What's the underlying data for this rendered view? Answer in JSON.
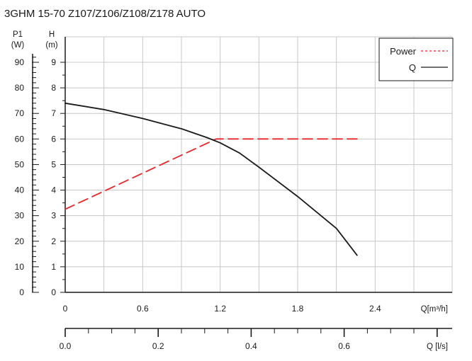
{
  "chart_data": {
    "type": "line",
    "title": "3GHM 15-70 Z107/Z106/Z108/Z178 AUTO",
    "x_axis": {
      "label": "Q[m³/h]",
      "range": [
        0,
        2.4
      ],
      "ticks": [
        0,
        0.6,
        1.2,
        1.8,
        2.4
      ],
      "tick_labels": [
        "0",
        "0.6",
        "1.2",
        "1.8",
        "2.4"
      ]
    },
    "x_axis_secondary": {
      "label": "Q  [l/s]",
      "range": [
        0,
        0.6667
      ],
      "ticks": [
        0.0,
        0.2,
        0.4,
        0.6
      ],
      "tick_labels": [
        "0.0",
        "0.2",
        "0.4",
        "0.6"
      ]
    },
    "y_axis_head": {
      "label_top": "H",
      "label_unit": "(m)",
      "range": [
        0,
        9
      ],
      "ticks": [
        0,
        1,
        2,
        3,
        4,
        5,
        6,
        7,
        8,
        9
      ],
      "tick_labels": [
        "0",
        "1",
        "2",
        "3",
        "4",
        "5",
        "6",
        "7",
        "8",
        "9"
      ]
    },
    "y_axis_power": {
      "label_top": "P1",
      "label_unit": "(W)",
      "range": [
        0,
        90
      ],
      "ticks": [
        0,
        10,
        20,
        30,
        40,
        50,
        60,
        70,
        80,
        90
      ],
      "tick_labels": [
        "0",
        "10",
        "20",
        "30",
        "40",
        "50",
        "60",
        "70",
        "80",
        "90"
      ]
    },
    "grid": true,
    "legend": {
      "position": "top-right",
      "entries": [
        {
          "label": "Power",
          "style": "dashed",
          "color": "#e8272a"
        },
        {
          "label": "Q",
          "style": "solid",
          "color": "#1a1a1a"
        }
      ]
    },
    "series": [
      {
        "name": "Power",
        "axis": "power",
        "color": "#e8272a",
        "x": [
          0,
          1.17,
          2.26
        ],
        "y": [
          32.5,
          60,
          60
        ]
      },
      {
        "name": "Q",
        "axis": "head",
        "color": "#1a1a1a",
        "x": [
          0,
          0.3,
          0.6,
          0.9,
          1.1,
          1.2,
          1.35,
          1.5,
          1.8,
          2.1,
          2.26
        ],
        "y": [
          7.4,
          7.15,
          6.8,
          6.4,
          6.05,
          5.85,
          5.45,
          4.9,
          3.75,
          2.5,
          1.45
        ]
      }
    ]
  }
}
